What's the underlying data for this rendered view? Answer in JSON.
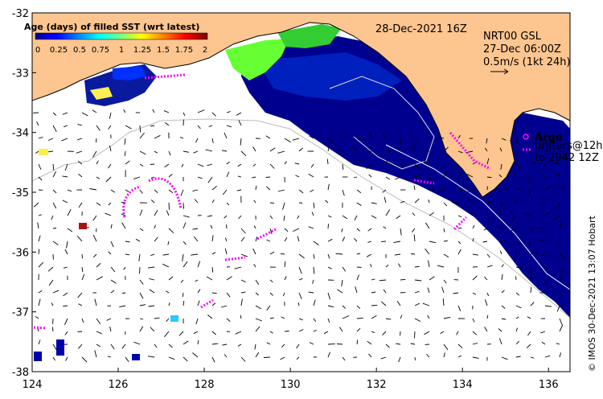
{
  "map": {
    "date_label": "28-Dec-2021 16Z",
    "product_label": "NRT00 GSL",
    "product_time": "27-Dec 06:00Z",
    "velocity_scale_label": "0.5m/s (1kt 24h)",
    "argo_label": "Argo",
    "drifters_label": "drifters@12h",
    "drifters_to_label": "to 2942 12Z",
    "credit": "© IMOS 30-Dec-2021 13:07 Hobart",
    "lon_ticks": [
      "124",
      "126",
      "128",
      "130",
      "132",
      "134",
      "136"
    ],
    "lat_ticks": [
      "-32",
      "-33",
      "-34",
      "-35",
      "-36",
      "-37",
      "-38"
    ],
    "legend": {
      "title": "Age (days) of filled SST (wrt latest)",
      "ticks": [
        "0",
        "0.25",
        "0.5",
        "0.75",
        "1",
        "1.25",
        "1.5",
        "1.75",
        "2"
      ]
    },
    "colors": {
      "land": "#fdc58f",
      "ocean_recent": "#00008f",
      "ocean_mid": "#0030c0",
      "old_data_green": "#7fff40",
      "argo_marker": "#ff00ff",
      "drifter_track": "#ff00ff"
    }
  }
}
